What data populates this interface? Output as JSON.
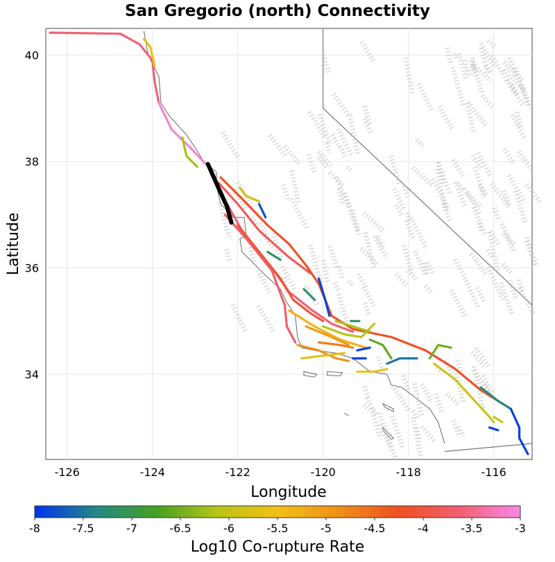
{
  "title": "San Gregorio (north) Connectivity",
  "chart_data": {
    "type": "map",
    "xlabel": "Longitude",
    "ylabel": "Latitude",
    "xlim": [
      -126.5,
      -115.1
    ],
    "ylim": [
      32.4,
      40.5
    ],
    "xticks": [
      -126,
      -124,
      -122,
      -120,
      -118,
      -116
    ],
    "yticks": [
      34,
      36,
      38,
      40
    ],
    "colorbar": {
      "label": "Log10 Co-rupture Rate",
      "min": -8,
      "max": -3,
      "ticks": [
        "-8",
        "-7.5",
        "-7",
        "-6.5",
        "-6",
        "-5.5",
        "-5",
        "-4.5",
        "-4",
        "-3.5",
        "-3"
      ],
      "stops": [
        "#0033ee",
        "#228888",
        "#44a022",
        "#b8c418",
        "#f2c018",
        "#f09018",
        "#ee5020",
        "#f06070",
        "#f888e8"
      ]
    },
    "highlighted_section": {
      "name": "San Gregorio (north)",
      "color": "#000000",
      "points": [
        [
          -122.7,
          37.95
        ],
        [
          -122.45,
          37.5
        ],
        [
          -122.25,
          37.15
        ],
        [
          -122.15,
          36.85
        ]
      ]
    },
    "faults": [
      {
        "rate": -3.6,
        "points": [
          [
            -126.4,
            40.42
          ],
          [
            -124.75,
            40.4
          ],
          [
            -124.3,
            40.2
          ],
          [
            -124.0,
            39.9
          ],
          [
            -123.95,
            39.5
          ],
          [
            -123.85,
            39.1
          ]
        ]
      },
      {
        "rate": -3.1,
        "points": [
          [
            -123.85,
            39.1
          ],
          [
            -123.55,
            38.6
          ],
          [
            -123.1,
            38.25
          ],
          [
            -122.75,
            37.95
          ]
        ]
      },
      {
        "rate": -3.8,
        "points": [
          [
            -122.45,
            37.6
          ],
          [
            -122.0,
            37.2
          ],
          [
            -121.5,
            36.7
          ],
          [
            -120.8,
            36.2
          ],
          [
            -120.3,
            35.9
          ]
        ]
      },
      {
        "rate": -4.2,
        "points": [
          [
            -122.4,
            37.7
          ],
          [
            -121.9,
            37.3
          ],
          [
            -121.3,
            36.8
          ],
          [
            -120.8,
            36.45
          ],
          [
            -120.4,
            36.05
          ],
          [
            -120.1,
            35.7
          ],
          [
            -119.8,
            35.1
          ],
          [
            -119.3,
            34.85
          ],
          [
            -118.4,
            34.7
          ],
          [
            -117.6,
            34.45
          ],
          [
            -116.9,
            34.1
          ],
          [
            -116.3,
            33.7
          ],
          [
            -115.6,
            33.35
          ]
        ]
      },
      {
        "rate": -3.6,
        "points": [
          [
            -122.25,
            37.2
          ],
          [
            -121.9,
            36.7
          ],
          [
            -121.6,
            36.4
          ],
          [
            -121.2,
            36.0
          ],
          [
            -120.8,
            35.55
          ],
          [
            -120.25,
            35.2
          ],
          [
            -119.8,
            34.95
          ],
          [
            -119.3,
            34.8
          ]
        ]
      },
      {
        "rate": -4.1,
        "points": [
          [
            -122.0,
            36.8
          ],
          [
            -121.5,
            36.3
          ],
          [
            -121.0,
            35.8
          ],
          [
            -120.7,
            35.4
          ],
          [
            -120.3,
            35.15
          ],
          [
            -120.0,
            35.0
          ]
        ]
      },
      {
        "rate": -3.7,
        "points": [
          [
            -122.3,
            37.0
          ],
          [
            -121.8,
            36.55
          ],
          [
            -121.2,
            35.95
          ],
          [
            -120.9,
            35.3
          ],
          [
            -120.85,
            34.9
          ],
          [
            -120.65,
            34.6
          ]
        ]
      },
      {
        "rate": -5.3,
        "points": [
          [
            -120.8,
            35.2
          ],
          [
            -120.2,
            34.9
          ],
          [
            -119.6,
            34.65
          ],
          [
            -119.0,
            34.5
          ]
        ]
      },
      {
        "rate": -5.0,
        "points": [
          [
            -120.4,
            34.9
          ],
          [
            -119.8,
            34.7
          ],
          [
            -119.4,
            34.55
          ]
        ]
      },
      {
        "rate": -4.9,
        "points": [
          [
            -120.6,
            34.55
          ],
          [
            -120.1,
            34.45
          ],
          [
            -119.7,
            34.3
          ],
          [
            -119.4,
            34.25
          ]
        ]
      },
      {
        "rate": -5.7,
        "points": [
          [
            -120.5,
            34.3
          ],
          [
            -120.0,
            34.35
          ],
          [
            -119.5,
            34.4
          ]
        ]
      },
      {
        "rate": -6.1,
        "points": [
          [
            -120.0,
            34.9
          ],
          [
            -119.5,
            34.75
          ],
          [
            -119.1,
            34.7
          ],
          [
            -118.8,
            34.95
          ]
        ]
      },
      {
        "rate": -6.2,
        "points": [
          [
            -119.7,
            35.0
          ],
          [
            -119.3,
            34.9
          ],
          [
            -118.9,
            34.8
          ]
        ]
      },
      {
        "rate": -6.6,
        "points": [
          [
            -118.9,
            34.65
          ],
          [
            -118.6,
            34.55
          ],
          [
            -118.4,
            34.3
          ]
        ]
      },
      {
        "rate": -7.5,
        "points": [
          [
            -118.5,
            34.2
          ],
          [
            -118.2,
            34.3
          ],
          [
            -117.8,
            34.3
          ]
        ]
      },
      {
        "rate": -7.9,
        "points": [
          [
            -119.3,
            34.3
          ],
          [
            -119.0,
            34.3
          ]
        ]
      },
      {
        "rate": -7.9,
        "points": [
          [
            -119.2,
            34.45
          ],
          [
            -118.9,
            34.5
          ]
        ]
      },
      {
        "rate": -5.9,
        "points": [
          [
            -117.4,
            34.2
          ],
          [
            -116.9,
            33.9
          ],
          [
            -116.5,
            33.55
          ],
          [
            -116.1,
            33.2
          ],
          [
            -116.0,
            33.1
          ]
        ]
      },
      {
        "rate": -6.5,
        "points": [
          [
            -117.5,
            34.3
          ],
          [
            -117.3,
            34.55
          ],
          [
            -117.0,
            34.5
          ]
        ]
      },
      {
        "rate": -7.3,
        "points": [
          [
            -116.3,
            33.75
          ],
          [
            -115.9,
            33.5
          ],
          [
            -115.6,
            33.35
          ]
        ]
      },
      {
        "rate": -7.9,
        "points": [
          [
            -115.6,
            33.35
          ],
          [
            -115.4,
            33.0
          ],
          [
            -115.4,
            32.8
          ],
          [
            -115.2,
            32.5
          ]
        ]
      },
      {
        "rate": -7.9,
        "points": [
          [
            -116.1,
            33.0
          ],
          [
            -115.9,
            32.95
          ]
        ]
      },
      {
        "rate": -7.9,
        "points": [
          [
            -120.1,
            35.8
          ],
          [
            -119.95,
            35.4
          ],
          [
            -119.85,
            35.1
          ]
        ]
      },
      {
        "rate": -7.8,
        "points": [
          [
            -121.5,
            37.2
          ],
          [
            -121.35,
            36.95
          ]
        ]
      },
      {
        "rate": -7.2,
        "points": [
          [
            -121.3,
            36.3
          ],
          [
            -121.0,
            36.15
          ]
        ]
      },
      {
        "rate": -7.2,
        "points": [
          [
            -120.45,
            35.6
          ],
          [
            -120.2,
            35.4
          ]
        ]
      },
      {
        "rate": -7.2,
        "points": [
          [
            -119.35,
            35.0
          ],
          [
            -119.15,
            35.0
          ]
        ]
      },
      {
        "rate": -6.2,
        "points": [
          [
            -123.3,
            38.45
          ],
          [
            -123.2,
            38.1
          ],
          [
            -122.95,
            37.9
          ]
        ]
      },
      {
        "rate": -5.9,
        "points": [
          [
            -121.95,
            37.5
          ],
          [
            -121.8,
            37.35
          ],
          [
            -121.5,
            37.25
          ]
        ]
      },
      {
        "rate": -5.6,
        "points": [
          [
            -124.2,
            40.3
          ],
          [
            -124.05,
            40.15
          ],
          [
            -123.95,
            39.8
          ]
        ]
      },
      {
        "rate": -5.6,
        "points": [
          [
            -119.2,
            34.05
          ],
          [
            -118.8,
            34.05
          ],
          [
            -118.5,
            34.1
          ]
        ]
      },
      {
        "rate": -6.0,
        "points": [
          [
            -116.0,
            33.2
          ],
          [
            -115.8,
            33.1
          ]
        ]
      },
      {
        "rate": -4.7,
        "points": [
          [
            -120.1,
            34.6
          ],
          [
            -119.6,
            34.55
          ],
          [
            -119.3,
            34.5
          ]
        ]
      }
    ]
  }
}
